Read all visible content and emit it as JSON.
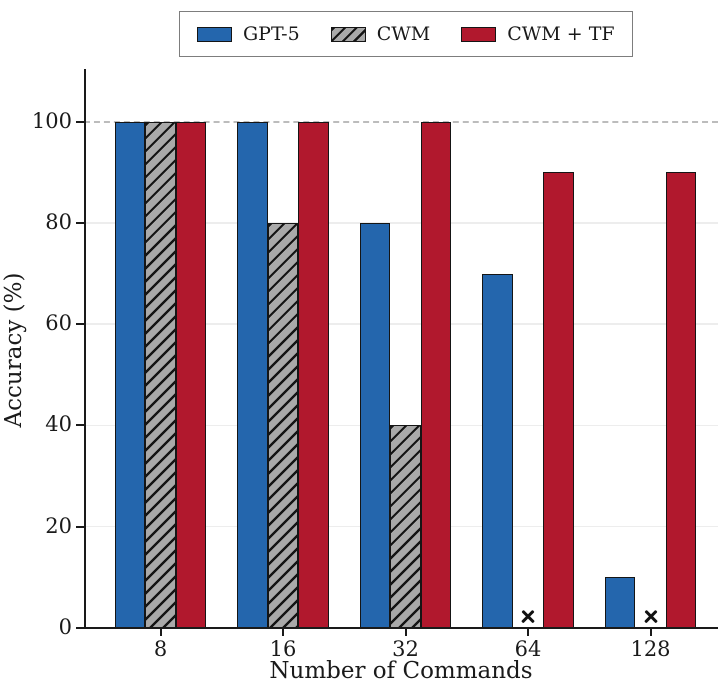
{
  "chart_data": {
    "type": "bar",
    "title": "",
    "xlabel": "Number of Commands",
    "ylabel": "Accuracy (%)",
    "categories": [
      "8",
      "16",
      "32",
      "64",
      "128"
    ],
    "series": [
      {
        "name": "GPT-5",
        "color": "#2466ad",
        "hatch": "none",
        "values": [
          100,
          100,
          80,
          70,
          10
        ]
      },
      {
        "name": "CWM",
        "color": "#a9a9a9",
        "hatch": "/",
        "values": [
          100,
          80,
          40,
          null,
          null
        ]
      },
      {
        "name": "CWM + TF",
        "color": "#b1182d",
        "hatch": "none",
        "values": [
          100,
          100,
          100,
          90,
          90
        ]
      }
    ],
    "missing_marker": "x",
    "missing_marker_y": 2.2,
    "yticks": [
      0,
      20,
      40,
      60,
      80,
      100
    ],
    "ylim": [
      0,
      110.4
    ],
    "grid": true,
    "reference_line": {
      "y": 100,
      "style": "dashed",
      "color": "#bcbcbc"
    },
    "legend_position": "top-center",
    "colors": {
      "bar_edge": "#151515",
      "gridline": "#ededed",
      "axis": "#1a1a1a"
    }
  }
}
